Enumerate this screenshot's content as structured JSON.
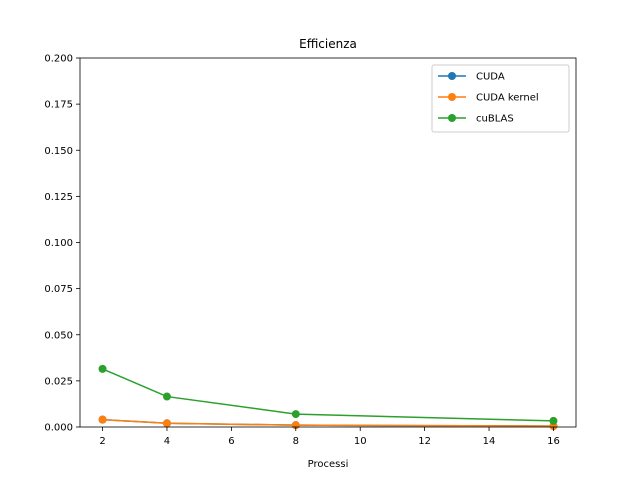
{
  "chart_data": {
    "type": "line",
    "title": "Efficienza",
    "xlabel": "Processi",
    "ylabel": "",
    "xlim": [
      1.3,
      16.7
    ],
    "ylim": [
      0,
      0.2
    ],
    "xticks": [
      2,
      4,
      6,
      8,
      10,
      12,
      14,
      16
    ],
    "yticks": [
      0.0,
      0.025,
      0.05,
      0.075,
      0.1,
      0.125,
      0.15,
      0.175,
      0.2
    ],
    "ytick_labels": [
      "0.000",
      "0.025",
      "0.050",
      "0.075",
      "0.100",
      "0.125",
      "0.150",
      "0.175",
      "0.200"
    ],
    "xtick_labels": [
      "2",
      "4",
      "6",
      "8",
      "10",
      "12",
      "14",
      "16"
    ],
    "grid": false,
    "legend_position": "top-right",
    "x": [
      2,
      4,
      8,
      16
    ],
    "series": [
      {
        "name": "CUDA",
        "color": "#1f77b4",
        "values": [
          0.004,
          0.002,
          0.001,
          0.0005
        ]
      },
      {
        "name": "CUDA kernel",
        "color": "#ff7f0e",
        "values": [
          0.004,
          0.002,
          0.001,
          0.0005
        ]
      },
      {
        "name": "cuBLAS",
        "color": "#2ca02c",
        "values": [
          0.0315,
          0.0165,
          0.007,
          0.0033
        ]
      }
    ]
  }
}
